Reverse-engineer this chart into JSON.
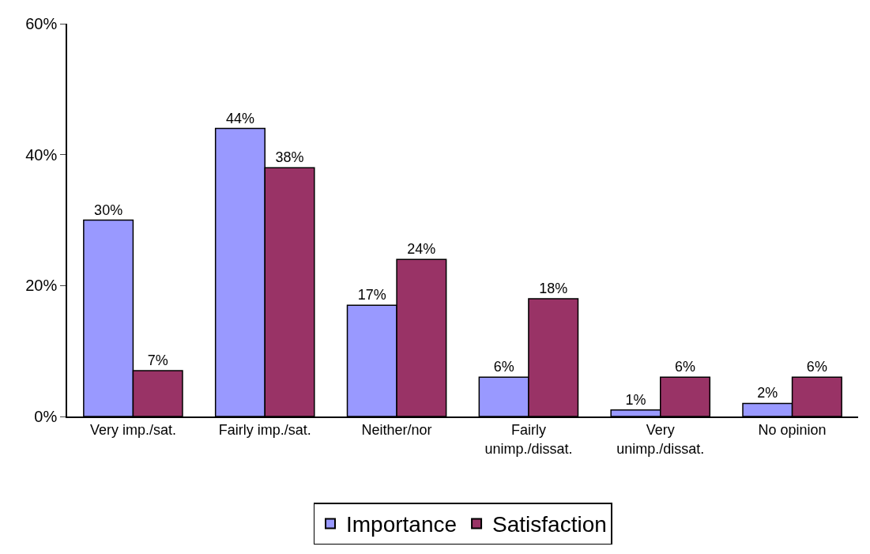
{
  "chart_data": {
    "type": "bar",
    "categories": [
      "Very imp./sat.",
      "Fairly imp./sat.",
      "Neither/nor",
      "Fairly unimp./dissat.",
      "Very unimp./dissat.",
      "No opinion"
    ],
    "series": [
      {
        "name": "Importance",
        "color": "#9999ff",
        "values": [
          30,
          44,
          17,
          6,
          1,
          2
        ],
        "value_labels": [
          "30%",
          "44%",
          "17%",
          "6%",
          "1%",
          "2%"
        ]
      },
      {
        "name": "Satisfaction",
        "color": "#993366",
        "values": [
          7,
          38,
          24,
          18,
          6,
          6
        ],
        "value_labels": [
          "7%",
          "38%",
          "24%",
          "18%",
          "6%",
          "6%"
        ]
      }
    ],
    "ylim": [
      0,
      60
    ],
    "yticks": [
      {
        "value": 0,
        "label": "0%"
      },
      {
        "value": 20,
        "label": "20%"
      },
      {
        "value": 40,
        "label": "40%"
      },
      {
        "value": 60,
        "label": "60%"
      }
    ],
    "legend": "bottom"
  }
}
